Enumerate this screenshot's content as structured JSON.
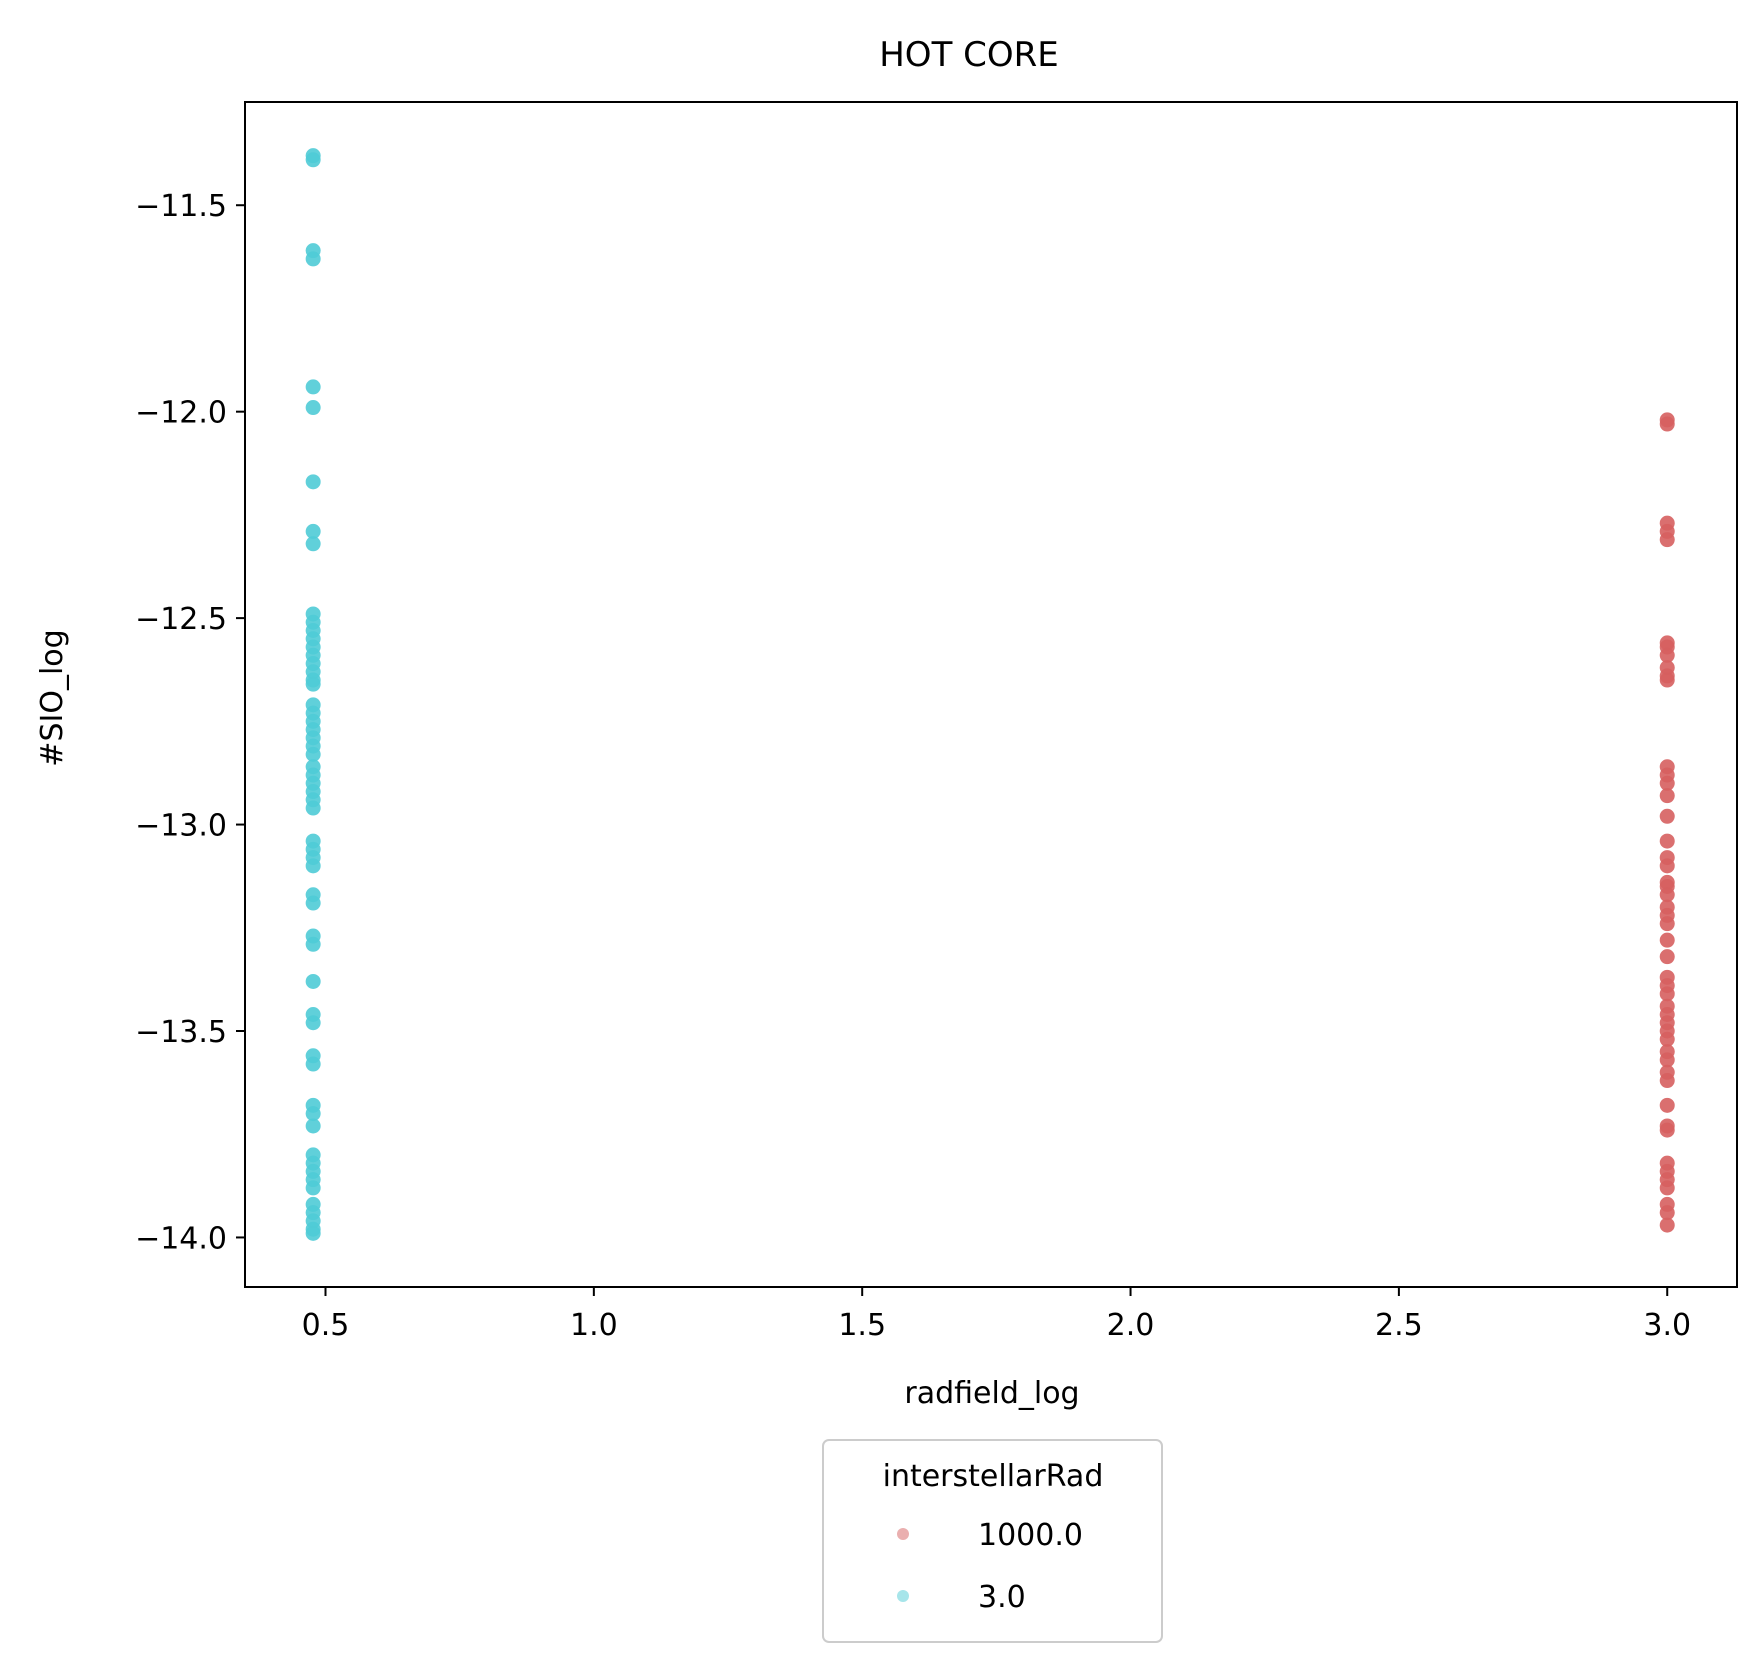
{
  "chart_data": {
    "type": "scatter",
    "title": "HOT CORE",
    "xlabel": "radfield_log",
    "ylabel": "#SIO_log",
    "xlim": [
      0.35,
      3.13
    ],
    "ylim": [
      -14.12,
      -11.25
    ],
    "x_ticks": [
      0.5,
      1.0,
      1.5,
      2.0,
      2.5,
      3.0
    ],
    "x_tick_labels": [
      "0.5",
      "1.0",
      "1.5",
      "2.0",
      "2.5",
      "3.0"
    ],
    "y_ticks": [
      -11.5,
      -12.0,
      -12.5,
      -13.0,
      -13.5,
      -14.0
    ],
    "y_tick_labels": [
      "−11.5",
      "−12.0",
      "−12.5",
      "−13.0",
      "−13.5",
      "−14.0"
    ],
    "grid": false,
    "legend": {
      "title": "interstellarRad",
      "position": "below"
    },
    "series": [
      {
        "name": "1000.0",
        "color": "#d65f5f",
        "x": 3.0,
        "y": [
          -12.02,
          -12.03,
          -12.27,
          -12.29,
          -12.31,
          -12.56,
          -12.57,
          -12.59,
          -12.62,
          -12.64,
          -12.65,
          -12.86,
          -12.88,
          -12.9,
          -12.93,
          -12.98,
          -13.04,
          -13.08,
          -13.1,
          -13.14,
          -13.15,
          -13.17,
          -13.2,
          -13.22,
          -13.24,
          -13.28,
          -13.32,
          -13.37,
          -13.39,
          -13.41,
          -13.44,
          -13.46,
          -13.48,
          -13.5,
          -13.52,
          -13.55,
          -13.57,
          -13.6,
          -13.62,
          -13.68,
          -13.73,
          -13.74,
          -13.82,
          -13.84,
          -13.86,
          -13.88,
          -13.92,
          -13.94,
          -13.97
        ]
      },
      {
        "name": "3.0",
        "color": "#4fcbd6",
        "x": 0.477,
        "y": [
          -11.38,
          -11.39,
          -11.61,
          -11.63,
          -11.94,
          -11.99,
          -12.17,
          -12.29,
          -12.32,
          -12.49,
          -12.51,
          -12.53,
          -12.55,
          -12.57,
          -12.59,
          -12.61,
          -12.63,
          -12.65,
          -12.66,
          -12.71,
          -12.73,
          -12.75,
          -12.77,
          -12.79,
          -12.81,
          -12.83,
          -12.86,
          -12.88,
          -12.9,
          -12.92,
          -12.94,
          -12.96,
          -13.04,
          -13.06,
          -13.08,
          -13.1,
          -13.17,
          -13.19,
          -13.27,
          -13.29,
          -13.38,
          -13.46,
          -13.48,
          -13.56,
          -13.58,
          -13.68,
          -13.7,
          -13.73,
          -13.8,
          -13.82,
          -13.84,
          -13.86,
          -13.88,
          -13.92,
          -13.94,
          -13.96,
          -13.98,
          -13.99
        ]
      }
    ]
  }
}
